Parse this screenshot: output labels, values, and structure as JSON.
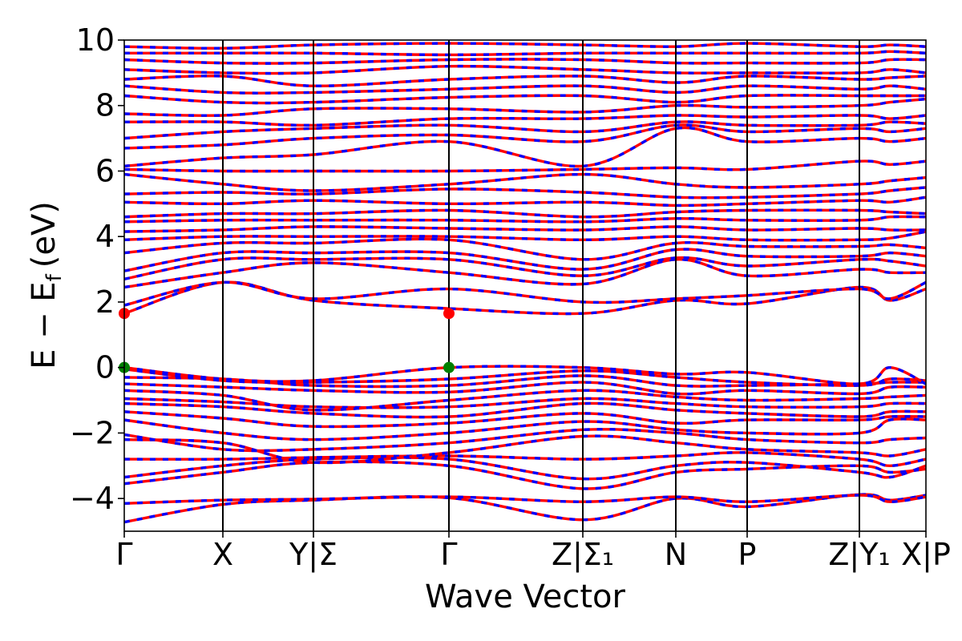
{
  "chart_data": {
    "type": "line",
    "title": "",
    "xlabel": "Wave Vector",
    "ylabel": "E − E",
    "ylabel_subscript": "f",
    "ylabel_unit": "(eV)",
    "ylim": [
      -5,
      10
    ],
    "yticks": [
      "−4",
      "−2",
      "0",
      "2",
      "4",
      "6",
      "8",
      "10"
    ],
    "ytick_values": [
      -4,
      -2,
      0,
      2,
      4,
      6,
      8,
      10
    ],
    "xlim": [
      0,
      1
    ],
    "kpoints": [
      {
        "label": "Γ",
        "x": 0.0
      },
      {
        "label": "X",
        "x": 0.123
      },
      {
        "label": "Y|Σ",
        "x": 0.236
      },
      {
        "label": "Γ",
        "x": 0.405
      },
      {
        "label": "Z|Σ₁",
        "x": 0.572
      },
      {
        "label": "N",
        "x": 0.688
      },
      {
        "label": "P",
        "x": 0.777
      },
      {
        "label": "Z|Y₁",
        "x": 0.917
      },
      {
        "label": "X|P",
        "x": 1.0
      }
    ],
    "series_colors": {
      "spin_up": "#ff0000",
      "spin_down": "#0000ff"
    },
    "cbm": {
      "x": 0.405,
      "y": 1.65,
      "color": "#ff0000"
    },
    "vbm": {
      "x": 0.405,
      "y": 0.0,
      "color": "#008000"
    },
    "bands": [
      [
        -4.72,
        -4.18,
        -4.05,
        -3.98,
        -4.65,
        -4.0,
        -4.25,
        -3.88,
        -4.05,
        -3.9
      ],
      [
        -4.15,
        -4.05,
        -4.02,
        -3.95,
        -4.1,
        -3.95,
        -4.1,
        -3.9,
        -4.1,
        -3.95
      ],
      [
        -3.55,
        -3.2,
        -2.9,
        -3.0,
        -3.7,
        -3.2,
        -3.1,
        -3.0,
        -3.2,
        -3.1
      ],
      [
        -3.35,
        -3.0,
        -2.8,
        -2.8,
        -3.4,
        -3.0,
        -2.9,
        -3.2,
        -3.35,
        -3.0
      ],
      [
        -2.8,
        -2.8,
        -2.75,
        -2.7,
        -2.8,
        -2.7,
        -2.6,
        -2.8,
        -3.0,
        -2.8
      ],
      [
        -2.2,
        -2.3,
        -2.9,
        -2.6,
        -2.1,
        -2.3,
        -2.5,
        -2.6,
        -2.7,
        -2.5
      ],
      [
        -2.05,
        -2.5,
        -2.5,
        -2.3,
        -1.9,
        -2.0,
        -2.2,
        -2.3,
        -2.2,
        -2.15
      ],
      [
        -1.6,
        -2.0,
        -2.2,
        -2.0,
        -1.65,
        -1.9,
        -2.0,
        -2.0,
        -1.6,
        -1.6
      ],
      [
        -1.35,
        -1.55,
        -1.8,
        -1.7,
        -1.4,
        -1.7,
        -1.6,
        -1.6,
        -1.5,
        -1.5
      ],
      [
        -1.1,
        -1.2,
        -1.4,
        -1.5,
        -1.1,
        -1.3,
        -1.4,
        -1.5,
        -1.35,
        -1.35
      ],
      [
        -0.95,
        -1.05,
        -1.2,
        -1.2,
        -0.95,
        -1.1,
        -1.2,
        -1.2,
        -1.1,
        -1.1
      ],
      [
        -0.7,
        -0.85,
        -1.3,
        -1.0,
        -0.7,
        -0.9,
        -1.0,
        -0.95,
        -0.9,
        -0.85
      ],
      [
        -0.5,
        -0.6,
        -0.7,
        -0.75,
        -0.45,
        -0.8,
        -0.7,
        -0.8,
        -0.6,
        -0.6
      ],
      [
        -0.3,
        -0.35,
        -0.55,
        -0.55,
        -0.25,
        -0.55,
        -0.55,
        -0.5,
        -0.45,
        -0.45
      ],
      [
        -0.05,
        -0.4,
        -0.45,
        -0.35,
        -0.1,
        -0.3,
        -0.45,
        -0.55,
        -0.35,
        -0.4
      ],
      [
        0.0,
        -0.35,
        -0.4,
        0.0,
        0.0,
        -0.2,
        -0.15,
        -0.5,
        0.0,
        -0.5
      ],
      [
        1.65,
        2.6,
        2.05,
        1.8,
        1.65,
        2.05,
        1.95,
        2.45,
        2.05,
        2.4
      ],
      [
        1.9,
        2.6,
        2.1,
        2.4,
        2.0,
        2.1,
        2.2,
        2.4,
        2.1,
        2.6
      ],
      [
        2.45,
        2.9,
        3.2,
        2.9,
        2.55,
        3.3,
        2.8,
        3.0,
        2.9,
        2.9
      ],
      [
        2.7,
        3.3,
        3.3,
        3.3,
        2.8,
        3.35,
        3.1,
        3.3,
        3.25,
        3.1
      ],
      [
        2.95,
        3.5,
        3.5,
        3.5,
        3.0,
        3.6,
        3.4,
        3.4,
        3.5,
        3.4
      ],
      [
        3.5,
        3.8,
        3.8,
        3.9,
        3.3,
        3.8,
        3.7,
        3.7,
        3.75,
        3.65
      ],
      [
        3.9,
        4.0,
        4.0,
        4.0,
        3.9,
        4.0,
        3.9,
        3.9,
        3.95,
        4.15
      ],
      [
        4.15,
        4.2,
        4.3,
        4.25,
        4.2,
        4.3,
        4.2,
        4.25,
        4.2,
        4.2
      ],
      [
        4.45,
        4.5,
        4.5,
        4.5,
        4.45,
        4.55,
        4.5,
        4.5,
        4.6,
        4.6
      ],
      [
        4.6,
        4.7,
        4.7,
        4.8,
        4.6,
        4.75,
        4.8,
        4.8,
        4.75,
        4.7
      ],
      [
        5.05,
        5.0,
        5.1,
        5.0,
        5.05,
        4.95,
        5.0,
        5.1,
        5.05,
        5.2
      ],
      [
        5.3,
        5.35,
        5.3,
        5.45,
        5.35,
        5.2,
        5.2,
        5.3,
        5.4,
        5.5
      ],
      [
        5.9,
        5.6,
        5.4,
        5.6,
        5.9,
        5.6,
        5.5,
        5.6,
        5.7,
        5.8
      ],
      [
        6.05,
        6.0,
        6.0,
        6.0,
        6.05,
        6.1,
        6.05,
        6.3,
        6.2,
        6.3
      ],
      [
        6.15,
        6.4,
        6.5,
        6.9,
        6.15,
        7.3,
        6.9,
        7.0,
        6.9,
        7.0
      ],
      [
        6.7,
        6.8,
        7.0,
        7.1,
        6.9,
        7.4,
        7.2,
        7.3,
        7.2,
        7.3
      ],
      [
        7.0,
        7.2,
        7.3,
        7.4,
        7.2,
        7.5,
        7.4,
        7.4,
        7.5,
        7.45
      ],
      [
        7.5,
        7.5,
        7.4,
        7.6,
        7.6,
        7.7,
        7.65,
        7.7,
        7.6,
        7.7
      ],
      [
        7.75,
        7.7,
        7.9,
        7.9,
        7.8,
        8.0,
        7.95,
        8.0,
        8.1,
        8.2
      ],
      [
        8.3,
        8.1,
        8.1,
        8.25,
        8.3,
        8.1,
        8.3,
        8.3,
        8.3,
        8.3
      ],
      [
        8.6,
        8.4,
        8.4,
        8.5,
        8.6,
        8.4,
        8.6,
        8.5,
        8.6,
        8.5
      ],
      [
        8.8,
        8.9,
        8.6,
        8.8,
        8.9,
        8.7,
        8.9,
        8.8,
        8.85,
        8.9
      ],
      [
        9.1,
        9.0,
        9.0,
        9.2,
        9.1,
        9.0,
        9.0,
        9.0,
        9.1,
        9.0
      ],
      [
        9.4,
        9.3,
        9.3,
        9.4,
        9.4,
        9.3,
        9.3,
        9.3,
        9.4,
        9.4
      ],
      [
        9.6,
        9.6,
        9.6,
        9.55,
        9.6,
        9.6,
        9.6,
        9.6,
        9.65,
        9.6
      ],
      [
        9.8,
        9.75,
        9.85,
        9.9,
        9.85,
        9.8,
        9.9,
        9.8,
        9.85,
        9.8
      ]
    ]
  }
}
